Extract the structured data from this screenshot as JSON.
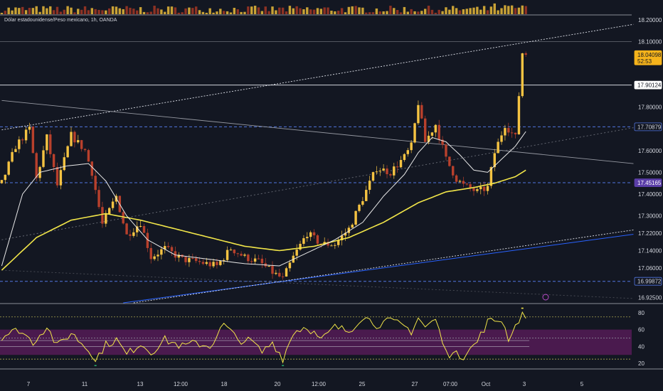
{
  "symbol": {
    "title": "Dólar estadounidense/Peso mexicano, 1h, OANDA"
  },
  "colors": {
    "background": "#131722",
    "up": "#f5c342",
    "down": "#b8402c",
    "ma_fast": "#e8e8e8",
    "ma_slow": "#f2e649",
    "rsi": "#f2e649",
    "rsi_band": "#4a1a4e",
    "level_line": "#5276e0",
    "trend_blue": "#2962ff"
  },
  "chart_data": [
    {
      "type": "candlestick",
      "title": "",
      "ylim": [
        16.9,
        18.22
      ],
      "y_ticks": [
        "18.20000",
        "18.10000",
        "17.80000",
        "17.60000",
        "17.50000",
        "17.40000",
        "17.30000",
        "17.22000",
        "17.14000",
        "17.06000",
        "16.92500"
      ],
      "x_ticks": [
        "7",
        "11",
        "13",
        "12:00",
        "18",
        "20",
        "12:00",
        "25",
        "27",
        "07:00",
        "Oct",
        "3",
        "5"
      ],
      "price_badges": [
        {
          "label": "18.04098",
          "sub": "52:53",
          "value": 18.041,
          "style": "current"
        },
        {
          "label": "17.90124",
          "value": 17.901,
          "style": "white"
        },
        {
          "label": "17.70879",
          "value": 17.709,
          "style": "blue"
        },
        {
          "label": "17.45165",
          "value": 17.452,
          "style": "purple"
        },
        {
          "label": "16.99872",
          "value": 16.999,
          "style": "blue"
        }
      ],
      "horizontal_levels": [
        {
          "value": 18.1,
          "style": "solid-gray"
        },
        {
          "value": 17.901,
          "style": "solid-white"
        },
        {
          "value": 17.709,
          "style": "dashed-blue"
        },
        {
          "value": 17.452,
          "style": "dashed-blue"
        },
        {
          "value": 16.999,
          "style": "dashed-blue"
        }
      ],
      "trendlines": [
        {
          "from": [
            0,
            17.695
          ],
          "to": [
            182,
            18.18
          ],
          "style": "dotted-white"
        },
        {
          "from": [
            0,
            17.83
          ],
          "to": [
            182,
            17.54
          ],
          "style": "solid-white"
        },
        {
          "from": [
            0,
            17.19
          ],
          "to": [
            182,
            17.705
          ],
          "style": "dotted-gray"
        },
        {
          "from": [
            35,
            16.9
          ],
          "to": [
            182,
            17.215
          ],
          "style": "solid-blue"
        },
        {
          "from": [
            38,
            16.9
          ],
          "to": [
            182,
            17.235
          ],
          "style": "dotted-white"
        },
        {
          "from": [
            0,
            17.05
          ],
          "to": [
            182,
            16.92
          ],
          "style": "dotted-dim"
        }
      ],
      "price_anchors": [
        [
          0,
          17.45
        ],
        [
          4,
          17.62
        ],
        [
          8,
          17.7
        ],
        [
          10,
          17.47
        ],
        [
          13,
          17.66
        ],
        [
          16,
          17.44
        ],
        [
          20,
          17.67
        ],
        [
          24,
          17.6
        ],
        [
          26,
          17.5
        ],
        [
          29,
          17.26
        ],
        [
          33,
          17.39
        ],
        [
          36,
          17.21
        ],
        [
          40,
          17.27
        ],
        [
          43,
          17.11
        ],
        [
          47,
          17.15
        ],
        [
          52,
          17.1
        ],
        [
          56,
          17.09
        ],
        [
          62,
          17.07
        ],
        [
          66,
          17.15
        ],
        [
          70,
          17.11
        ],
        [
          74,
          17.09
        ],
        [
          78,
          17.04
        ],
        [
          81,
          17.01
        ],
        [
          84,
          17.11
        ],
        [
          88,
          17.22
        ],
        [
          92,
          17.17
        ],
        [
          96,
          17.17
        ],
        [
          100,
          17.24
        ],
        [
          104,
          17.38
        ],
        [
          108,
          17.52
        ],
        [
          112,
          17.5
        ],
        [
          116,
          17.57
        ],
        [
          118,
          17.62
        ],
        [
          120,
          17.82
        ],
        [
          122,
          17.64
        ],
        [
          125,
          17.72
        ],
        [
          128,
          17.56
        ],
        [
          131,
          17.47
        ],
        [
          133,
          17.44
        ],
        [
          137,
          17.41
        ],
        [
          140,
          17.43
        ],
        [
          142,
          17.59
        ],
        [
          145,
          17.72
        ],
        [
          148,
          17.66
        ],
        [
          150,
          18.05
        ],
        [
          152,
          18.04
        ]
      ],
      "ma_fast_anchors": [
        [
          0,
          17.07
        ],
        [
          6,
          17.4
        ],
        [
          11,
          17.5
        ],
        [
          19,
          17.53
        ],
        [
          25,
          17.54
        ],
        [
          30,
          17.46
        ],
        [
          36,
          17.3
        ],
        [
          42,
          17.19
        ],
        [
          50,
          17.12
        ],
        [
          60,
          17.1
        ],
        [
          70,
          17.08
        ],
        [
          80,
          17.07
        ],
        [
          88,
          17.13
        ],
        [
          96,
          17.19
        ],
        [
          104,
          17.27
        ],
        [
          110,
          17.39
        ],
        [
          116,
          17.49
        ],
        [
          120,
          17.59
        ],
        [
          124,
          17.66
        ],
        [
          128,
          17.64
        ],
        [
          132,
          17.58
        ],
        [
          136,
          17.51
        ],
        [
          140,
          17.5
        ],
        [
          144,
          17.56
        ],
        [
          148,
          17.62
        ],
        [
          152,
          17.71
        ]
      ],
      "ma_slow_anchors": [
        [
          0,
          17.05
        ],
        [
          10,
          17.2
        ],
        [
          20,
          17.28
        ],
        [
          30,
          17.31
        ],
        [
          40,
          17.28
        ],
        [
          50,
          17.24
        ],
        [
          60,
          17.2
        ],
        [
          70,
          17.16
        ],
        [
          80,
          17.14
        ],
        [
          90,
          17.16
        ],
        [
          100,
          17.2
        ],
        [
          110,
          17.27
        ],
        [
          120,
          17.36
        ],
        [
          128,
          17.41
        ],
        [
          136,
          17.43
        ],
        [
          142,
          17.45
        ],
        [
          148,
          17.48
        ],
        [
          152,
          17.52
        ]
      ],
      "volume_bars_count": 152
    },
    {
      "type": "line",
      "title": "",
      "ylim": [
        15,
        90
      ],
      "y_ticks": [
        "80",
        "60",
        "40",
        "20"
      ],
      "band": [
        30,
        60
      ],
      "levels": [
        75,
        50,
        25
      ],
      "series": [
        {
          "anchors": [
            [
              0,
              52
            ],
            [
              5,
              60
            ],
            [
              9,
              45
            ],
            [
              13,
              64
            ],
            [
              16,
              40
            ],
            [
              20,
              56
            ],
            [
              24,
              40
            ],
            [
              27,
              25
            ],
            [
              30,
              42
            ],
            [
              33,
              48
            ],
            [
              36,
              30
            ],
            [
              40,
              44
            ],
            [
              43,
              33
            ],
            [
              47,
              48
            ],
            [
              52,
              40
            ],
            [
              56,
              44
            ],
            [
              60,
              40
            ],
            [
              64,
              66
            ],
            [
              68,
              48
            ],
            [
              72,
              46
            ],
            [
              75,
              33
            ],
            [
              78,
              45
            ],
            [
              81,
              26
            ],
            [
              84,
              57
            ],
            [
              88,
              64
            ],
            [
              92,
              47
            ],
            [
              96,
              63
            ],
            [
              100,
              58
            ],
            [
              104,
              76
            ],
            [
              108,
              66
            ],
            [
              112,
              70
            ],
            [
              116,
              64
            ],
            [
              118,
              58
            ],
            [
              120,
              74
            ],
            [
              122,
              63
            ],
            [
              125,
              72
            ],
            [
              128,
              32
            ],
            [
              131,
              30
            ],
            [
              133,
              27
            ],
            [
              137,
              46
            ],
            [
              140,
              69
            ],
            [
              144,
              72
            ],
            [
              146,
              50
            ],
            [
              148,
              64
            ],
            [
              150,
              80
            ],
            [
              152,
              76
            ]
          ]
        }
      ]
    }
  ]
}
